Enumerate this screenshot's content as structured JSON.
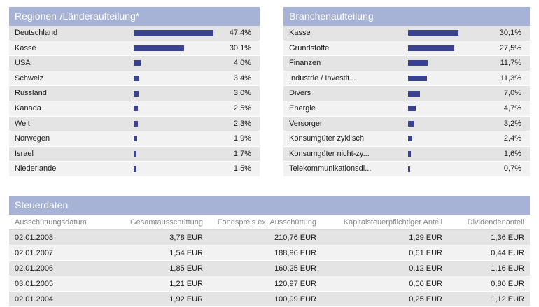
{
  "regions": {
    "title": "Regionen-/Länderaufteilung*",
    "rows": [
      {
        "label": "Deutschland",
        "value": "47,4%",
        "fraction": 0.474
      },
      {
        "label": "Kasse",
        "value": "30,1%",
        "fraction": 0.301
      },
      {
        "label": "USA",
        "value": "4,0%",
        "fraction": 0.04
      },
      {
        "label": "Schweiz",
        "value": "3,4%",
        "fraction": 0.034
      },
      {
        "label": "Russland",
        "value": "3,0%",
        "fraction": 0.03
      },
      {
        "label": "Kanada",
        "value": "2,5%",
        "fraction": 0.025
      },
      {
        "label": "Welt",
        "value": "2,3%",
        "fraction": 0.023
      },
      {
        "label": "Norwegen",
        "value": "1,9%",
        "fraction": 0.019
      },
      {
        "label": "Israel",
        "value": "1,7%",
        "fraction": 0.017
      },
      {
        "label": "Niederlande",
        "value": "1,5%",
        "fraction": 0.015
      }
    ]
  },
  "sectors": {
    "title": "Branchenaufteilung",
    "rows": [
      {
        "label": "Kasse",
        "value": "30,1%",
        "fraction": 0.301
      },
      {
        "label": "Grundstoffe",
        "value": "27,5%",
        "fraction": 0.275
      },
      {
        "label": "Finanzen",
        "value": "11,7%",
        "fraction": 0.117
      },
      {
        "label": "Industrie / Investit...",
        "value": "11,3%",
        "fraction": 0.113
      },
      {
        "label": "Divers",
        "value": "7,0%",
        "fraction": 0.07
      },
      {
        "label": "Energie",
        "value": "4,7%",
        "fraction": 0.047
      },
      {
        "label": "Versorger",
        "value": "3,2%",
        "fraction": 0.032
      },
      {
        "label": "Konsumgüter zyklisch",
        "value": "2,4%",
        "fraction": 0.024
      },
      {
        "label": "Konsumgüter nicht-zy...",
        "value": "1,6%",
        "fraction": 0.016
      },
      {
        "label": "Telekommunikationsdi...",
        "value": "0,7%",
        "fraction": 0.007
      }
    ]
  },
  "tax": {
    "title": "Steuerdaten",
    "columns": [
      "Ausschüttungsdatum",
      "Gesamtausschüttung",
      "Fondspreis ex. Ausschüttung",
      "Kapitalsteuerpflichtiger Anteil",
      "Dividendenanteil"
    ],
    "rows": [
      [
        "02.01.2008",
        "3,78 EUR",
        "210,76 EUR",
        "1,29 EUR",
        "1,36 EUR"
      ],
      [
        "02.01.2007",
        "1,54 EUR",
        "188,96 EUR",
        "0,61 EUR",
        "0,44 EUR"
      ],
      [
        "02.01.2006",
        "1,85 EUR",
        "160,25 EUR",
        "0,12 EUR",
        "1,16 EUR"
      ],
      [
        "03.01.2005",
        "1,21 EUR",
        "120,97 EUR",
        "0,00 EUR",
        "0,80 EUR"
      ],
      [
        "02.01.2004",
        "1,92 EUR",
        "100,99 EUR",
        "0,25 EUR",
        "1,12 EUR"
      ]
    ]
  }
}
